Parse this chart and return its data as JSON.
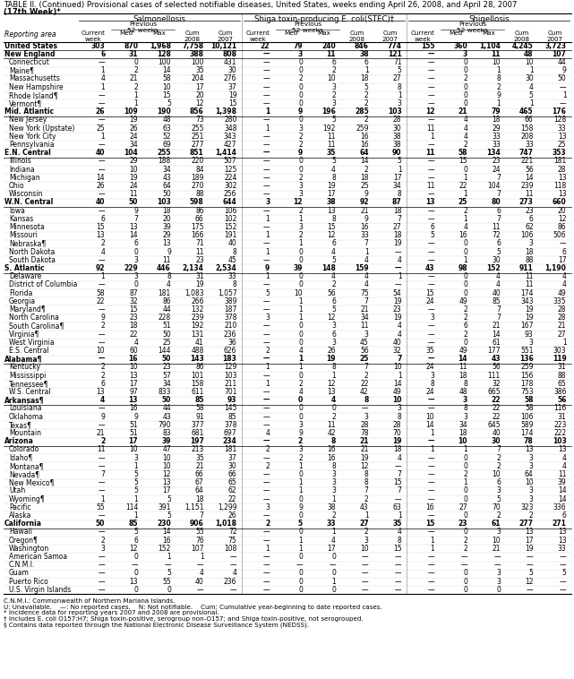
{
  "title_line1": "TABLE II. (Continued) Provisional cases of selected notifiable diseases, United States, weeks ending April 26, 2008, and April 28, 2007",
  "title_line2": "(17th Week)*",
  "col_groups": [
    "Salmonellosis",
    "Shiga toxin-producing E. coli(STEC)†",
    "Shigellosis"
  ],
  "footnotes": [
    "C.N.M.I.: Commonwealth of Northern Mariana Islands.",
    "U: Unavailable.    —: No reported cases.    N: Not notifiable.    Cum: Cumulative year-beginning to date reported cases.",
    "* Incidence data for reporting years 2007 and 2008 are provisional.",
    "† Includes E. coli O157:H7; Shiga toxin-positive, serogroup non-O157; and Shiga toxin-positive, not serogrouped.",
    "§ Contains data reported through the National Electronic Disease Surveillance System (NEDSS)."
  ],
  "bold_rows": [
    0,
    1,
    8,
    13,
    19,
    27,
    38,
    43,
    48,
    58
  ],
  "rows": [
    [
      "United States",
      "303",
      "870",
      "1,968",
      "7,758",
      "10,121",
      "22",
      "79",
      "240",
      "846",
      "774",
      "155",
      "360",
      "1,104",
      "4,245",
      "3,723"
    ],
    [
      "New England",
      "6",
      "31",
      "128",
      "388",
      "808",
      "—",
      "3",
      "11",
      "38",
      "121",
      "—",
      "3",
      "11",
      "48",
      "107"
    ],
    [
      "Connecticut",
      "—",
      "0",
      "100",
      "100",
      "431",
      "—",
      "0",
      "6",
      "6",
      "71",
      "—",
      "0",
      "10",
      "10",
      "44"
    ],
    [
      "Maine¶",
      "1",
      "2",
      "14",
      "35",
      "30",
      "—",
      "0",
      "2",
      "1",
      "5",
      "—",
      "0",
      "1",
      "1",
      "9"
    ],
    [
      "Massachusetts",
      "4",
      "21",
      "58",
      "204",
      "276",
      "—",
      "2",
      "10",
      "18",
      "27",
      "—",
      "2",
      "8",
      "30",
      "50"
    ],
    [
      "New Hampshire",
      "1",
      "2",
      "10",
      "17",
      "37",
      "—",
      "0",
      "3",
      "5",
      "8",
      "—",
      "0",
      "2",
      "4",
      "—"
    ],
    [
      "Rhode Island¶",
      "—",
      "1",
      "15",
      "20",
      "19",
      "—",
      "0",
      "2",
      "2",
      "1",
      "—",
      "0",
      "9",
      "5",
      "1"
    ],
    [
      "Vermont¶",
      "—",
      "1",
      "5",
      "12",
      "15",
      "—",
      "0",
      "3",
      "2",
      "3",
      "—",
      "0",
      "1",
      "1",
      "—"
    ],
    [
      "Mid. Atlantic",
      "26",
      "109",
      "190",
      "856",
      "1,398",
      "1",
      "9",
      "196",
      "285",
      "103",
      "12",
      "21",
      "79",
      "465",
      "176"
    ],
    [
      "New Jersey",
      "—",
      "19",
      "48",
      "73",
      "280",
      "—",
      "0",
      "5",
      "2",
      "28",
      "—",
      "4",
      "18",
      "66",
      "128"
    ],
    [
      "New York (Upstate)",
      "25",
      "26",
      "63",
      "255",
      "348",
      "1",
      "3",
      "192",
      "259",
      "30",
      "11",
      "4",
      "29",
      "158",
      "33"
    ],
    [
      "New York City",
      "1",
      "24",
      "52",
      "251",
      "343",
      "—",
      "2",
      "11",
      "16",
      "38",
      "1",
      "4",
      "33",
      "208",
      "13"
    ],
    [
      "Pennsylvania",
      "—",
      "34",
      "69",
      "277",
      "427",
      "—",
      "2",
      "11",
      "16",
      "38",
      "—",
      "2",
      "33",
      "33",
      "25"
    ],
    [
      "E.N. Central",
      "40",
      "104",
      "255",
      "851",
      "1,414",
      "—",
      "9",
      "35",
      "64",
      "90",
      "11",
      "58",
      "134",
      "747",
      "353"
    ],
    [
      "Illinois",
      "—",
      "29",
      "188",
      "220",
      "507",
      "—",
      "0",
      "5",
      "14",
      "5",
      "—",
      "15",
      "23",
      "221",
      "181"
    ],
    [
      "Indiana",
      "—",
      "10",
      "34",
      "84",
      "125",
      "—",
      "0",
      "4",
      "2",
      "1",
      "—",
      "0",
      "24",
      "56",
      "28"
    ],
    [
      "Michigan",
      "14",
      "19",
      "43",
      "189",
      "224",
      "—",
      "2",
      "8",
      "18",
      "17",
      "—",
      "1",
      "7",
      "14",
      "13"
    ],
    [
      "Ohio",
      "26",
      "24",
      "64",
      "270",
      "302",
      "—",
      "3",
      "19",
      "25",
      "34",
      "11",
      "22",
      "104",
      "239",
      "118"
    ],
    [
      "Wisconsin",
      "—",
      "11",
      "50",
      "88",
      "256",
      "—",
      "3",
      "17",
      "9",
      "8",
      "—",
      "1",
      "7",
      "11",
      "13"
    ],
    [
      "W.N. Central",
      "40",
      "50",
      "103",
      "598",
      "644",
      "3",
      "12",
      "38",
      "92",
      "87",
      "13",
      "25",
      "80",
      "273",
      "660"
    ],
    [
      "Iowa",
      "—",
      "9",
      "18",
      "86",
      "106",
      "—",
      "2",
      "13",
      "21",
      "18",
      "—",
      "2",
      "6",
      "23",
      "20"
    ],
    [
      "Kansas",
      "6",
      "7",
      "20",
      "66",
      "102",
      "1",
      "1",
      "8",
      "9",
      "7",
      "—",
      "1",
      "7",
      "6",
      "12"
    ],
    [
      "Minnesota",
      "15",
      "13",
      "39",
      "175",
      "152",
      "—",
      "3",
      "15",
      "16",
      "27",
      "6",
      "4",
      "11",
      "62",
      "86"
    ],
    [
      "Missouri",
      "13",
      "14",
      "29",
      "166",
      "191",
      "1",
      "2",
      "12",
      "33",
      "18",
      "5",
      "16",
      "72",
      "106",
      "506"
    ],
    [
      "Nebraska¶",
      "2",
      "6",
      "13",
      "71",
      "40",
      "—",
      "1",
      "6",
      "7",
      "19",
      "—",
      "0",
      "6",
      "3",
      "—"
    ],
    [
      "North Dakota",
      "4",
      "0",
      "9",
      "11",
      "8",
      "1",
      "0",
      "4",
      "1",
      "—",
      "—",
      "0",
      "5",
      "18",
      "6"
    ],
    [
      "South Dakota",
      "—",
      "3",
      "11",
      "23",
      "45",
      "—",
      "0",
      "5",
      "4",
      "4",
      "—",
      "1",
      "30",
      "88",
      "17"
    ],
    [
      "S. Atlantic",
      "92",
      "229",
      "446",
      "2,134",
      "2,534",
      "9",
      "39",
      "148",
      "159",
      "—",
      "43",
      "98",
      "152",
      "911",
      "1,190"
    ],
    [
      "Delaware",
      "1",
      "3",
      "8",
      "31",
      "33",
      "1",
      "0",
      "4",
      "4",
      "1",
      "—",
      "0",
      "4",
      "11",
      "4"
    ],
    [
      "District of Columbia",
      "—",
      "0",
      "4",
      "19",
      "8",
      "—",
      "0",
      "2",
      "4",
      "—",
      "—",
      "0",
      "4",
      "11",
      "4"
    ],
    [
      "Florida",
      "58",
      "87",
      "181",
      "1,083",
      "1,057",
      "5",
      "10",
      "56",
      "75",
      "54",
      "15",
      "0",
      "40",
      "174",
      "49"
    ],
    [
      "Georgia",
      "22",
      "32",
      "86",
      "266",
      "389",
      "—",
      "1",
      "6",
      "7",
      "19",
      "24",
      "49",
      "85",
      "343",
      "335"
    ],
    [
      "Maryland¶",
      "—",
      "15",
      "44",
      "132",
      "187",
      "—",
      "1",
      "5",
      "21",
      "23",
      "—",
      "2",
      "7",
      "19",
      "28"
    ],
    [
      "North Carolina",
      "9",
      "23",
      "228",
      "239",
      "378",
      "3",
      "1",
      "12",
      "34",
      "19",
      "3",
      "2",
      "7",
      "19",
      "28"
    ],
    [
      "South Carolina¶",
      "2",
      "18",
      "51",
      "192",
      "210",
      "—",
      "0",
      "3",
      "11",
      "4",
      "—",
      "6",
      "21",
      "167",
      "21"
    ],
    [
      "Virginia¶",
      "—",
      "22",
      "50",
      "131",
      "236",
      "—",
      "0",
      "6",
      "3",
      "4",
      "—",
      "2",
      "14",
      "93",
      "27"
    ],
    [
      "West Virginia",
      "—",
      "4",
      "25",
      "41",
      "36",
      "—",
      "0",
      "3",
      "45",
      "40",
      "—",
      "0",
      "61",
      "3",
      "1"
    ],
    [
      "E.S. Central",
      "10",
      "60",
      "144",
      "488",
      "626",
      "2",
      "4",
      "26",
      "56",
      "32",
      "35",
      "49",
      "177",
      "551",
      "303"
    ],
    [
      "Alabama¶",
      "—",
      "16",
      "50",
      "143",
      "183",
      "—",
      "1",
      "19",
      "25",
      "7",
      "—",
      "14",
      "43",
      "136",
      "119"
    ],
    [
      "Kentucky",
      "2",
      "10",
      "23",
      "86",
      "129",
      "1",
      "1",
      "8",
      "7",
      "10",
      "24",
      "11",
      "56",
      "259",
      "31"
    ],
    [
      "Mississippi",
      "2",
      "13",
      "57",
      "101",
      "103",
      "—",
      "0",
      "1",
      "2",
      "1",
      "3",
      "18",
      "111",
      "156",
      "88"
    ],
    [
      "Tennessee¶",
      "6",
      "17",
      "34",
      "158",
      "211",
      "1",
      "2",
      "12",
      "22",
      "14",
      "8",
      "8",
      "32",
      "178",
      "65"
    ],
    [
      "W.S. Central",
      "13",
      "97",
      "833",
      "611",
      "701",
      "—",
      "4",
      "13",
      "42",
      "49",
      "24",
      "48",
      "665",
      "753",
      "386"
    ],
    [
      "Arkansas¶",
      "4",
      "13",
      "50",
      "85",
      "93",
      "—",
      "0",
      "4",
      "8",
      "10",
      "—",
      "3",
      "22",
      "58",
      "56"
    ],
    [
      "Louisiana",
      "—",
      "16",
      "44",
      "58",
      "145",
      "—",
      "0",
      "0",
      "—",
      "3",
      "—",
      "8",
      "22",
      "58",
      "116"
    ],
    [
      "Oklahoma",
      "9",
      "9",
      "43",
      "91",
      "85",
      "—",
      "0",
      "2",
      "3",
      "8",
      "10",
      "3",
      "22",
      "106",
      "31"
    ],
    [
      "Texas¶",
      "—",
      "51",
      "790",
      "377",
      "378",
      "—",
      "3",
      "11",
      "28",
      "28",
      "14",
      "34",
      "645",
      "589",
      "223"
    ],
    [
      "Mountain",
      "21",
      "51",
      "83",
      "681",
      "697",
      "4",
      "9",
      "42",
      "78",
      "70",
      "1",
      "18",
      "40",
      "174",
      "222"
    ],
    [
      "Arizona",
      "2",
      "17",
      "39",
      "197",
      "234",
      "—",
      "2",
      "8",
      "21",
      "19",
      "—",
      "10",
      "30",
      "78",
      "103"
    ],
    [
      "Colorado",
      "11",
      "10",
      "47",
      "213",
      "181",
      "2",
      "3",
      "16",
      "21",
      "18",
      "1",
      "1",
      "7",
      "13",
      "13"
    ],
    [
      "Idaho¶",
      "—",
      "3",
      "10",
      "35",
      "37",
      "—",
      "2",
      "16",
      "19",
      "4",
      "—",
      "0",
      "2",
      "3",
      "4"
    ],
    [
      "Montana¶",
      "—",
      "1",
      "10",
      "21",
      "30",
      "2",
      "1",
      "8",
      "12",
      "—",
      "—",
      "0",
      "2",
      "3",
      "4"
    ],
    [
      "Nevada¶",
      "7",
      "5",
      "12",
      "66",
      "66",
      "—",
      "0",
      "3",
      "8",
      "7",
      "—",
      "2",
      "10",
      "64",
      "11"
    ],
    [
      "New Mexico¶",
      "—",
      "5",
      "13",
      "67",
      "65",
      "—",
      "1",
      "3",
      "8",
      "15",
      "—",
      "1",
      "6",
      "10",
      "39"
    ],
    [
      "Utah",
      "—",
      "5",
      "17",
      "64",
      "62",
      "—",
      "1",
      "3",
      "7",
      "7",
      "—",
      "0",
      "3",
      "3",
      "14"
    ],
    [
      "Wyoming¶",
      "1",
      "1",
      "5",
      "18",
      "22",
      "—",
      "0",
      "1",
      "2",
      "—",
      "—",
      "0",
      "5",
      "3",
      "14"
    ],
    [
      "Pacific",
      "55",
      "114",
      "391",
      "1,151",
      "1,299",
      "3",
      "9",
      "38",
      "43",
      "63",
      "16",
      "27",
      "70",
      "323",
      "336"
    ],
    [
      "Alaska",
      "—",
      "1",
      "5",
      "7",
      "26",
      "—",
      "0",
      "2",
      "1",
      "1",
      "—",
      "0",
      "2",
      "2",
      "6"
    ],
    [
      "California",
      "50",
      "85",
      "230",
      "906",
      "1,018",
      "2",
      "5",
      "33",
      "27",
      "35",
      "15",
      "23",
      "61",
      "277",
      "271"
    ],
    [
      "Hawaii",
      "—",
      "5",
      "14",
      "55",
      "72",
      "—",
      "0",
      "1",
      "2",
      "4",
      "—",
      "0",
      "3",
      "13",
      "13"
    ],
    [
      "Oregon¶",
      "2",
      "6",
      "16",
      "76",
      "75",
      "—",
      "1",
      "4",
      "3",
      "8",
      "1",
      "2",
      "10",
      "17",
      "13"
    ],
    [
      "Washington",
      "3",
      "12",
      "152",
      "107",
      "108",
      "1",
      "1",
      "17",
      "10",
      "15",
      "1",
      "2",
      "21",
      "19",
      "33"
    ],
    [
      "American Samoa",
      "—",
      "0",
      "1",
      "1",
      "—",
      "—",
      "0",
      "0",
      "—",
      "—",
      "—",
      "—",
      "—",
      "—",
      "—"
    ],
    [
      "C.N.M.I.",
      "—",
      "—",
      "—",
      "—",
      "—",
      "—",
      "—",
      "—",
      "—",
      "—",
      "—",
      "—",
      "—",
      "—",
      "—"
    ],
    [
      "Guam",
      "—",
      "0",
      "5",
      "4",
      "4",
      "—",
      "0",
      "0",
      "—",
      "—",
      "—",
      "0",
      "3",
      "5",
      "5"
    ],
    [
      "Puerto Rico",
      "—",
      "13",
      "55",
      "40",
      "236",
      "—",
      "0",
      "1",
      "—",
      "—",
      "—",
      "0",
      "3",
      "12",
      "—"
    ],
    [
      "U.S. Virgin Islands",
      "—",
      "0",
      "0",
      "—",
      "—",
      "—",
      "0",
      "0",
      "—",
      "—",
      "—",
      "0",
      "0",
      "—",
      "—"
    ]
  ]
}
